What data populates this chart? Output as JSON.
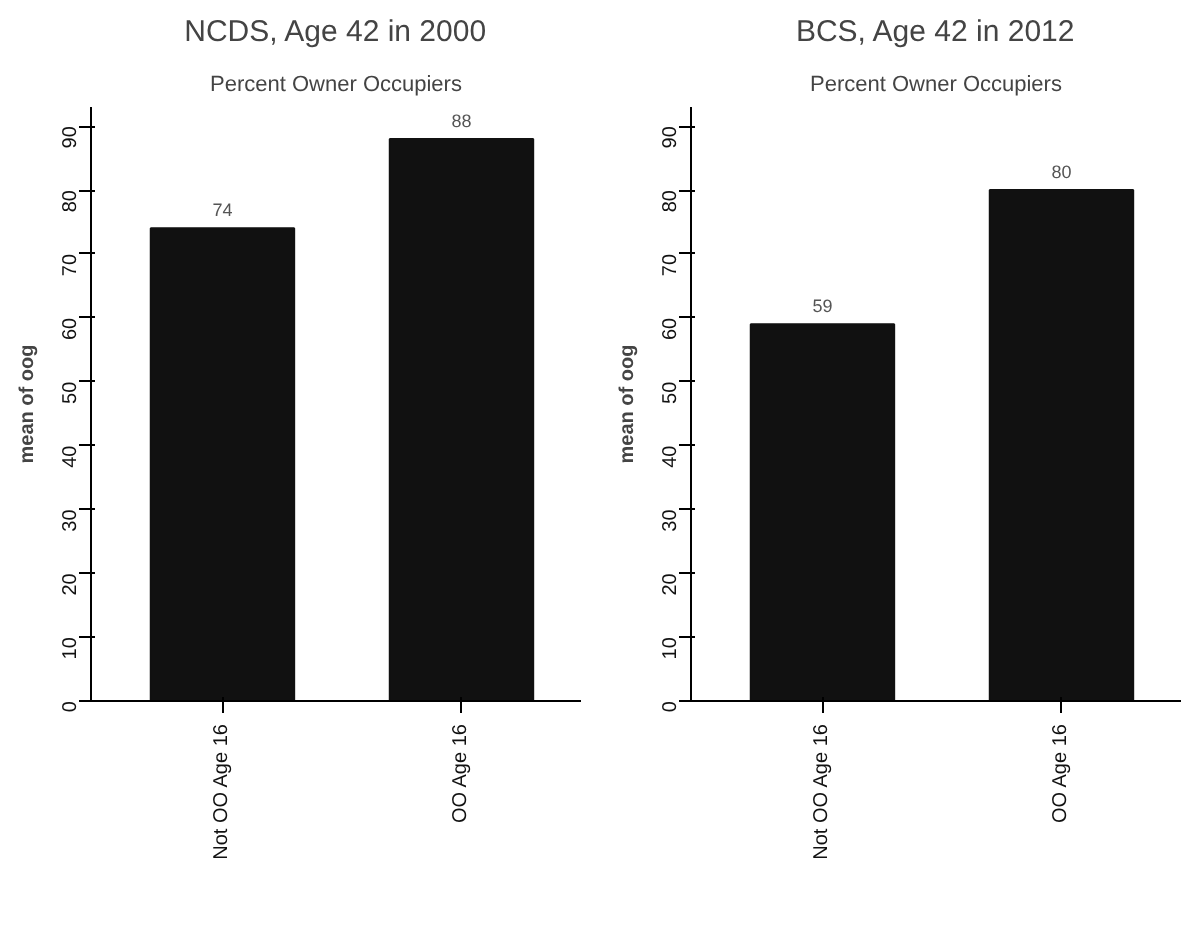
{
  "chart_data": [
    {
      "type": "bar",
      "title": "NCDS, Age 42 in 2000",
      "subtitle": "Percent Owner Occupiers",
      "ylabel": "mean of oog",
      "categories": [
        "Not OO Age 16",
        "OO Age 16"
      ],
      "values": [
        74,
        88
      ],
      "color": "#111111",
      "ylim": [
        0,
        93
      ],
      "yticks": [
        0,
        10,
        20,
        30,
        40,
        50,
        60,
        70,
        80,
        90
      ],
      "data_labels": true,
      "grid": false
    },
    {
      "type": "bar",
      "title": "BCS, Age 42 in 2012",
      "subtitle": "Percent Owner Occupiers",
      "ylabel": "mean of oog",
      "categories": [
        "Not OO Age 16",
        "OO Age 16"
      ],
      "values": [
        59,
        80
      ],
      "color": "#111111",
      "ylim": [
        0,
        93
      ],
      "yticks": [
        0,
        10,
        20,
        30,
        40,
        50,
        60,
        70,
        80,
        90
      ],
      "data_labels": true,
      "grid": false
    }
  ]
}
